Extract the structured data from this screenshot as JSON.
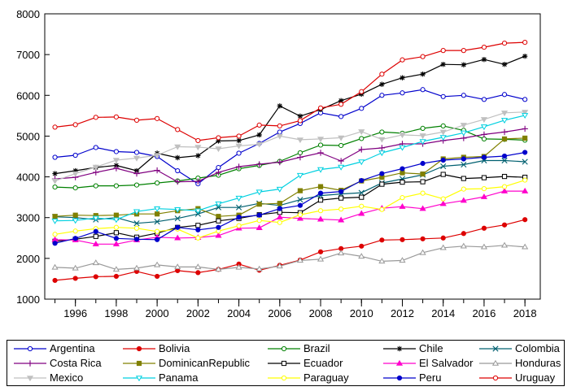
{
  "chart_data": {
    "type": "line",
    "title": "",
    "xlabel": "",
    "ylabel": "",
    "x": [
      1995,
      1996,
      1997,
      1998,
      1999,
      2000,
      2001,
      2002,
      2003,
      2004,
      2005,
      2006,
      2007,
      2008,
      2009,
      2010,
      2011,
      2012,
      2013,
      2014,
      2015,
      2016,
      2017,
      2018
    ],
    "x_tick_labels": [
      "1996",
      "1998",
      "2000",
      "2002",
      "2004",
      "2006",
      "2008",
      "2010",
      "2012",
      "2014",
      "2016",
      "2018"
    ],
    "x_tick_values": [
      1996,
      1998,
      2000,
      2002,
      2004,
      2006,
      2008,
      2010,
      2012,
      2014,
      2016,
      2018
    ],
    "xlim": [
      1994.5,
      2018.75
    ],
    "ylim": [
      1000,
      8000
    ],
    "y_ticks": [
      1000,
      2000,
      3000,
      4000,
      5000,
      6000,
      7000,
      8000
    ],
    "grid": false,
    "legend_position": "bottom",
    "series": [
      {
        "name": "Argentina",
        "color": "#0000cc",
        "marker": "circle-open",
        "values": [
          4480,
          4530,
          4720,
          4620,
          4600,
          4500,
          4150,
          3830,
          4230,
          4580,
          4820,
          5100,
          5310,
          5570,
          5480,
          5680,
          6000,
          6060,
          6140,
          5970,
          6000,
          5900,
          6020,
          5900
        ]
      },
      {
        "name": "Bolivia",
        "color": "#dd0000",
        "marker": "circle-filled",
        "values": [
          1460,
          1510,
          1550,
          1560,
          1680,
          1560,
          1700,
          1650,
          1730,
          1860,
          1710,
          1830,
          1960,
          2160,
          2240,
          2300,
          2450,
          2460,
          2480,
          2500,
          2610,
          2740,
          2820,
          2950
        ]
      },
      {
        "name": "Brazil",
        "color": "#008000",
        "marker": "circle-open",
        "values": [
          3750,
          3730,
          3780,
          3780,
          3800,
          3850,
          3900,
          3970,
          4040,
          4200,
          4280,
          4380,
          4590,
          4780,
          4770,
          4940,
          5100,
          5070,
          5190,
          5250,
          5140,
          4930,
          4920,
          4900
        ]
      },
      {
        "name": "Chile",
        "color": "#000000",
        "marker": "star",
        "values": [
          4080,
          4150,
          4230,
          4280,
          4150,
          4580,
          4470,
          4520,
          4880,
          4890,
          5030,
          5740,
          5490,
          5650,
          5870,
          6030,
          6270,
          6430,
          6520,
          6760,
          6750,
          6880,
          6760,
          6960
        ]
      },
      {
        "name": "Colombia",
        "color": "#006070",
        "marker": "x",
        "values": [
          3020,
          3000,
          2950,
          3000,
          2860,
          2900,
          2980,
          3090,
          3250,
          3250,
          3350,
          3300,
          3440,
          3540,
          3580,
          3610,
          3850,
          3950,
          4050,
          4260,
          4300,
          4400,
          4400,
          4370
        ]
      },
      {
        "name": "Costa Rica",
        "color": "#800080",
        "marker": "plus",
        "values": [
          3950,
          3990,
          4110,
          4210,
          4080,
          4160,
          3880,
          3890,
          4110,
          4250,
          4310,
          4360,
          4480,
          4590,
          4390,
          4670,
          4710,
          4810,
          4810,
          4890,
          4950,
          5040,
          5100,
          5180
        ]
      },
      {
        "name": "DominicanRepublic",
        "color": "#808000",
        "marker": "square-filled",
        "values": [
          3030,
          3060,
          3050,
          3060,
          3090,
          3090,
          3170,
          3220,
          3030,
          3060,
          3330,
          3350,
          3660,
          3760,
          3670,
          3900,
          3990,
          4100,
          4070,
          4440,
          4480,
          4500,
          4930,
          4950
        ]
      },
      {
        "name": "Ecuador",
        "color": "#000000",
        "marker": "square-open",
        "values": [
          2420,
          2470,
          2540,
          2630,
          2520,
          2620,
          2760,
          2810,
          2920,
          2980,
          3070,
          3130,
          3120,
          3430,
          3480,
          3500,
          3820,
          3870,
          3880,
          4060,
          3960,
          3980,
          4010,
          3990
        ]
      },
      {
        "name": "El Salvador",
        "color": "#ff00cc",
        "marker": "triangle-filled",
        "values": [
          2460,
          2450,
          2350,
          2350,
          2450,
          2520,
          2500,
          2510,
          2560,
          2740,
          2750,
          3010,
          2980,
          2960,
          2940,
          3100,
          3230,
          3270,
          3220,
          3340,
          3420,
          3510,
          3650,
          3650
        ]
      },
      {
        "name": "Honduras",
        "color": "#999999",
        "marker": "triangle-open",
        "values": [
          1780,
          1760,
          1890,
          1730,
          1760,
          1840,
          1790,
          1790,
          1730,
          1780,
          1740,
          1810,
          1950,
          1980,
          2130,
          2050,
          1930,
          1950,
          2140,
          2260,
          2300,
          2280,
          2320,
          2280
        ]
      },
      {
        "name": "Mexico",
        "color": "#c0c0c0",
        "marker": "triangle-down-filled",
        "values": [
          3900,
          4080,
          4240,
          4410,
          4460,
          4530,
          4740,
          4730,
          4690,
          4760,
          4800,
          5000,
          4910,
          4930,
          4960,
          5110,
          4920,
          5030,
          5010,
          5100,
          5270,
          5410,
          5570,
          5590
        ]
      },
      {
        "name": "Panama",
        "color": "#00d0e0",
        "marker": "triangle-down-open",
        "values": [
          2920,
          2930,
          2990,
          2950,
          3150,
          3220,
          3200,
          3170,
          3340,
          3480,
          3630,
          3700,
          4040,
          4180,
          4240,
          4370,
          4590,
          4720,
          4870,
          4970,
          5080,
          5230,
          5390,
          5510
        ]
      },
      {
        "name": "Paraguay",
        "color": "#ffff00",
        "marker": "circle-open",
        "values": [
          2590,
          2670,
          2730,
          2760,
          2740,
          2660,
          2720,
          2500,
          2670,
          2800,
          2930,
          2880,
          3070,
          3170,
          3210,
          3280,
          3200,
          3490,
          3600,
          3460,
          3700,
          3710,
          3760,
          3920
        ]
      },
      {
        "name": "Peru",
        "color": "#0000cc",
        "marker": "circle-filled",
        "values": [
          2370,
          2490,
          2660,
          2490,
          2470,
          2460,
          2760,
          2700,
          2760,
          3010,
          3060,
          3220,
          3300,
          3600,
          3640,
          3910,
          4080,
          4200,
          4330,
          4410,
          4440,
          4480,
          4510,
          4600
        ]
      },
      {
        "name": "Uruguay",
        "color": "#dd0000",
        "marker": "circle-open",
        "values": [
          5220,
          5280,
          5460,
          5470,
          5390,
          5430,
          5160,
          4890,
          4960,
          5000,
          5270,
          5250,
          5380,
          5690,
          5780,
          6090,
          6520,
          6870,
          6950,
          7100,
          7100,
          7180,
          7280,
          7300
        ]
      }
    ]
  }
}
